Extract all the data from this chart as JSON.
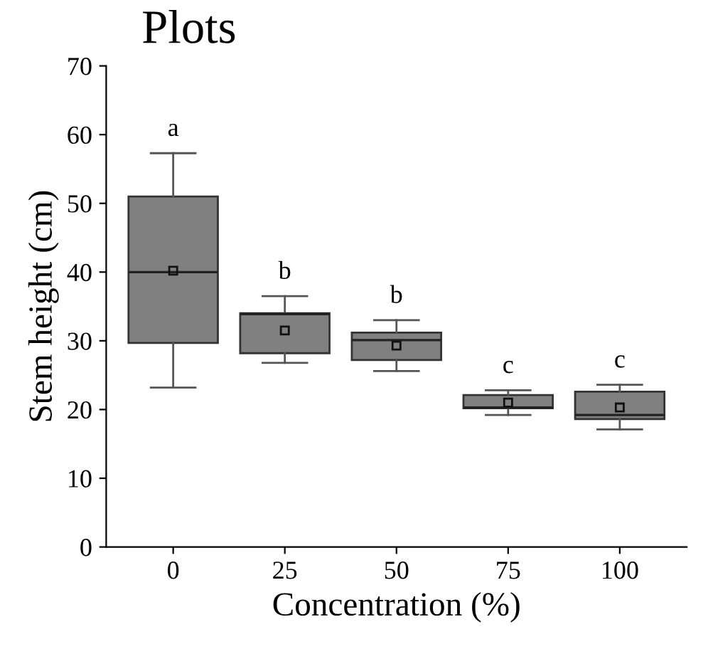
{
  "chart_data": {
    "type": "box",
    "title": "Plots",
    "xlabel": "Concentration (%)",
    "ylabel": "Stem height (cm)",
    "categories": [
      "0",
      "25",
      "50",
      "75",
      "100"
    ],
    "boxes": [
      {
        "low": 23.2,
        "q1": 29.7,
        "median": 40,
        "q3": 51,
        "high": 57.3,
        "mean": 40.2
      },
      {
        "low": 26.8,
        "q1": 28.2,
        "median": 33.9,
        "q3": 34,
        "high": 36.5,
        "mean": 31.5
      },
      {
        "low": 25.6,
        "q1": 27.2,
        "median": 30.1,
        "q3": 31.2,
        "high": 33,
        "mean": 29.3
      },
      {
        "low": 19.2,
        "q1": 20.2,
        "median": 20.3,
        "q3": 22.1,
        "high": 22.8,
        "mean": 21
      },
      {
        "low": 17.1,
        "q1": 18.6,
        "median": 19.2,
        "q3": 22.6,
        "high": 23.6,
        "mean": 20.3
      }
    ],
    "color": "#808080",
    "ylim": [
      0,
      70
    ],
    "yticks": [
      0,
      10,
      20,
      30,
      40,
      50,
      60,
      70
    ],
    "grid": false,
    "annotations": [
      "a",
      "b",
      "b",
      "c",
      "c"
    ]
  }
}
